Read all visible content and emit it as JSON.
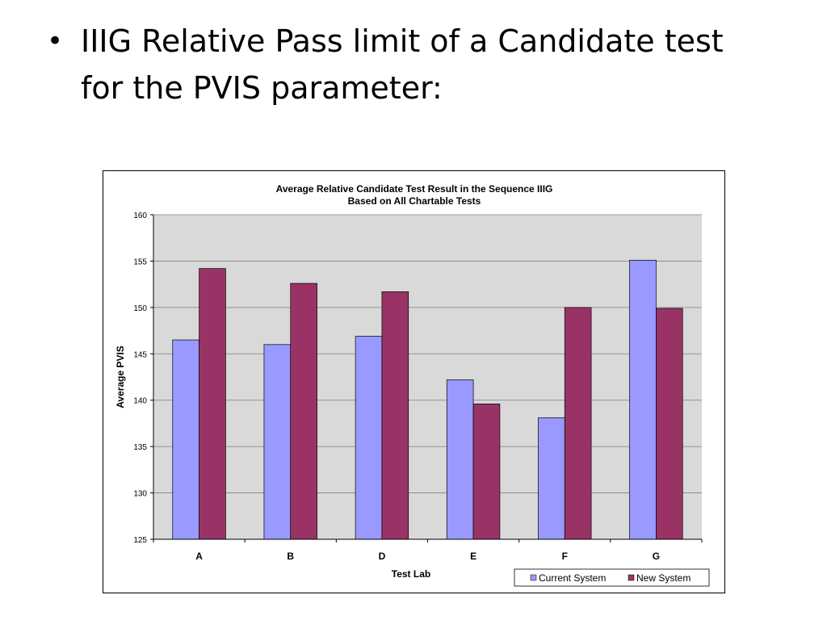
{
  "slide": {
    "bullet_icon": "bullet-dot",
    "bullet_text": "IIIG Relative Pass limit of a Candidate test for the PVIS parameter:"
  },
  "chart_data": {
    "type": "bar",
    "title": "Average Relative Candidate Test Result in the Sequence IIIG",
    "subtitle": "Based on All Chartable Tests",
    "xlabel": "Test Lab",
    "ylabel": "Average PVIS",
    "categories": [
      "A",
      "B",
      "D",
      "E",
      "F",
      "G"
    ],
    "ylim": [
      125,
      160
    ],
    "yticks": [
      125,
      130,
      135,
      140,
      145,
      150,
      155,
      160
    ],
    "grid": true,
    "legend_position": "bottom-right",
    "series": [
      {
        "name": "Current System",
        "color": "#9999FF",
        "values": [
          146.5,
          146.0,
          146.9,
          142.2,
          138.1,
          155.1
        ]
      },
      {
        "name": "New System",
        "color": "#993366",
        "values": [
          154.2,
          152.6,
          151.7,
          139.6,
          150.0,
          149.9
        ]
      }
    ],
    "plot_background": "#D9D9D9"
  }
}
